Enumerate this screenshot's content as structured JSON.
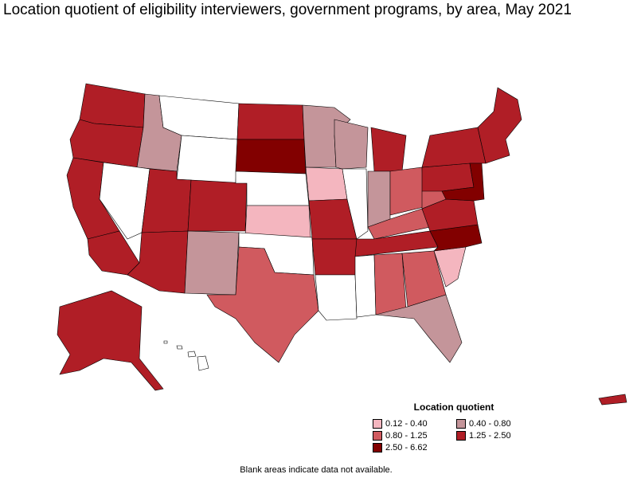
{
  "title": "Location quotient of eligibility interviewers, government programs, by area, May 2021",
  "legend": {
    "title": "Location quotient",
    "items": [
      {
        "label": "0.12 - 0.40",
        "color": "#f4b6bf"
      },
      {
        "label": "0.40 - 0.80",
        "color": "#c4959a"
      },
      {
        "label": "0.80 - 1.25",
        "color": "#d05a5f"
      },
      {
        "label": "1.25 - 2.50",
        "color": "#b01e26"
      },
      {
        "label": "2.50 - 6.62",
        "color": "#820000"
      }
    ]
  },
  "footnote": "Blank areas indicate data not available.",
  "colors": {
    "no_data": "#ffffff",
    "border": "#000000"
  }
}
